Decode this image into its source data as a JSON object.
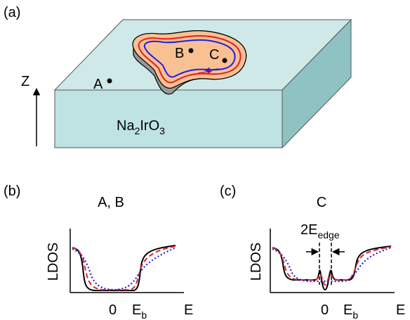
{
  "panel_a": {
    "label": "(a)",
    "axis_label": "Z",
    "points": [
      "A",
      "B",
      "C"
    ],
    "material": [
      "Na",
      "2",
      "IrO",
      "3"
    ]
  },
  "panel_b": {
    "label": "(b)",
    "title": "A, B",
    "y_label": "LDOS",
    "zero": "0",
    "energy": [
      "E",
      "b"
    ],
    "x_label": "E"
  },
  "panel_c": {
    "label": "(c)",
    "title": "C",
    "y_label": "LDOS",
    "zero": "0",
    "energy": [
      "E",
      "b"
    ],
    "x_label": "E",
    "gap": [
      "2E",
      "edge"
    ]
  }
}
